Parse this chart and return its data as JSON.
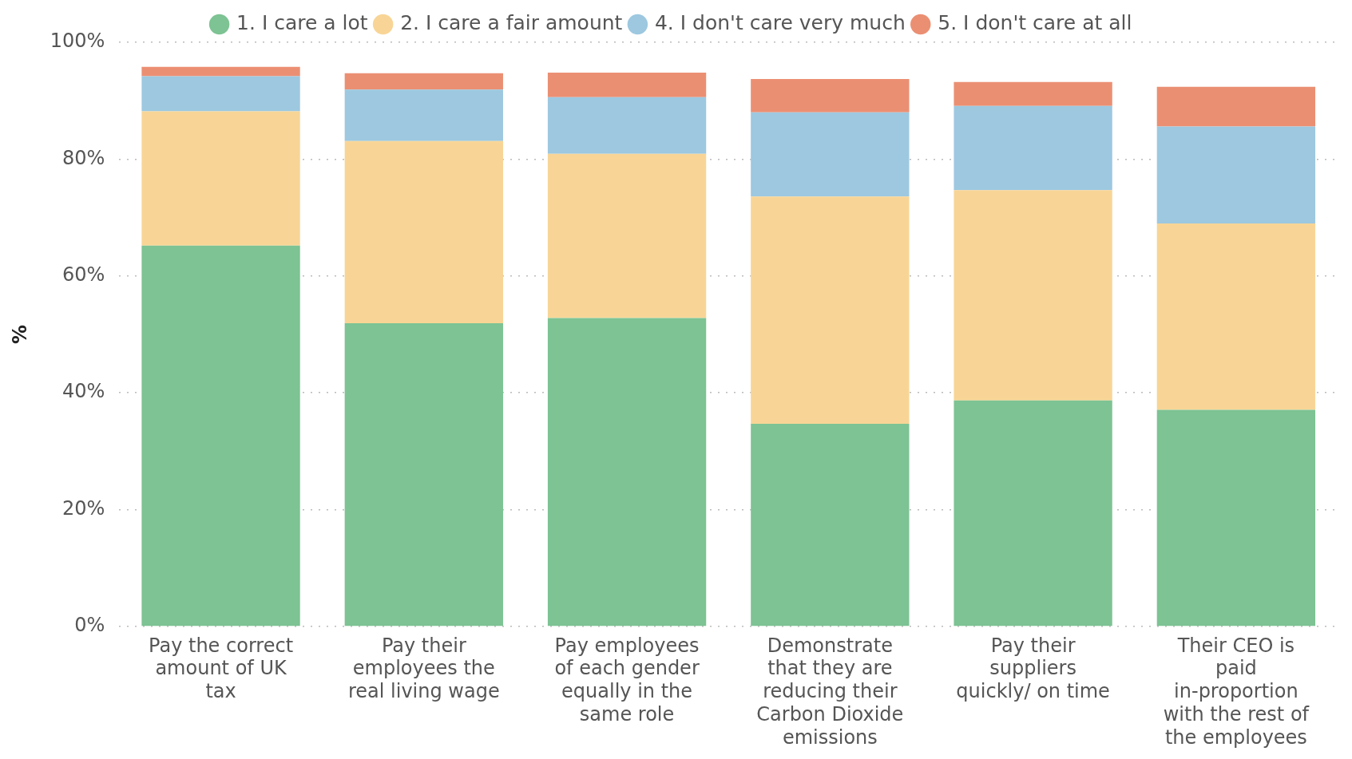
{
  "chart_data": {
    "type": "bar",
    "stacked": true,
    "ylabel": "%",
    "categories": [
      "Pay the correct amount of UK tax",
      "Pay their employees the real living wage",
      "Pay employees of each gender equally in the same role",
      "Demonstrate that they are reducing their Carbon Dioxide emissions",
      "Pay their suppliers quickly/ on time",
      "Their CEO is paid in-proportion with the rest of the employees"
    ],
    "series": [
      {
        "name": "1. I care a lot",
        "color": "#7dc393",
        "values": [
          65.2,
          51.9,
          52.8,
          34.7,
          38.7,
          37.1
        ]
      },
      {
        "name": "2. I care a fair amount",
        "color": "#f8d596",
        "values": [
          23.0,
          31.2,
          28.1,
          38.9,
          36.0,
          31.9
        ]
      },
      {
        "name": "4. I don't care very much",
        "color": "#9dc8e0",
        "values": [
          6.0,
          8.8,
          9.7,
          14.4,
          14.4,
          16.6
        ]
      },
      {
        "name": "5. I don't care at all",
        "color": "#eb8f73",
        "values": [
          1.6,
          2.8,
          4.2,
          5.7,
          4.1,
          6.8
        ]
      }
    ],
    "ylim": [
      0,
      100
    ],
    "yticks": [
      {
        "value": 0,
        "label": "0%"
      },
      {
        "value": 20,
        "label": "20%"
      },
      {
        "value": 40,
        "label": "40%"
      },
      {
        "value": 60,
        "label": "60%"
      },
      {
        "value": 80,
        "label": "80%"
      },
      {
        "value": 100,
        "label": "100%"
      }
    ],
    "grid": "y",
    "legend": "top"
  }
}
